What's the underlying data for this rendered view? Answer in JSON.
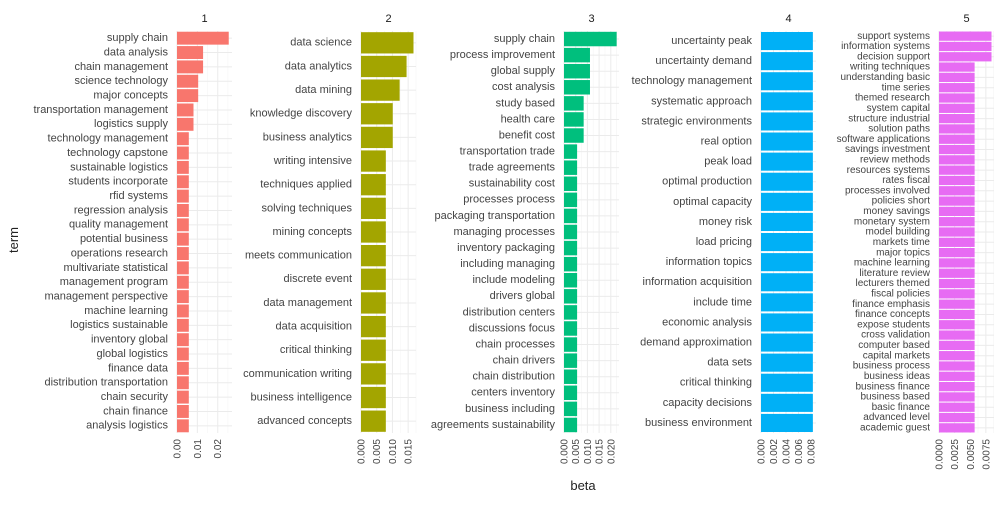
{
  "chart_data": {
    "type": "bar",
    "orientation": "horizontal",
    "facets": "one panel per topic, free term axis",
    "xlabel": "beta",
    "ylabel": "term",
    "grid": true,
    "legend": "none",
    "panels": [
      {
        "label": "1",
        "color": "#F8766D",
        "xlim": [
          0,
          0.027
        ],
        "xticks": [
          0.0,
          0.01,
          0.02
        ],
        "tick_labels": [
          "0.00",
          "0.01",
          "0.02"
        ],
        "terms": [
          "supply chain",
          "data analysis",
          "chain management",
          "science technology",
          "major concepts",
          "transportation management",
          "logistics supply",
          "technology management",
          "technology capstone",
          "sustainable logistics",
          "students incorporate",
          "rfid systems",
          "regression analysis",
          "quality management",
          "potential business",
          "operations research",
          "multivariate statistical",
          "management program",
          "management perspective",
          "machine learning",
          "logistics sustainable",
          "inventory global",
          "global logistics",
          "finance data",
          "distribution transportation",
          "chain security",
          "chain finance",
          "analysis logistics"
        ],
        "values": [
          0.0254,
          0.0128,
          0.0128,
          0.0104,
          0.0104,
          0.0081,
          0.0081,
          0.0058,
          0.0058,
          0.0058,
          0.0058,
          0.0058,
          0.0058,
          0.0058,
          0.0058,
          0.0058,
          0.0058,
          0.0058,
          0.0058,
          0.0058,
          0.0058,
          0.0058,
          0.0058,
          0.0058,
          0.0058,
          0.0058,
          0.0058,
          0.0058
        ]
      },
      {
        "label": "2",
        "color": "#A3A500",
        "xlim": [
          0,
          0.0175
        ],
        "xticks": [
          0.0,
          0.005,
          0.01,
          0.015
        ],
        "tick_labels": [
          "0.000",
          "0.005",
          "0.010",
          "0.015"
        ],
        "terms": [
          "data science",
          "data analytics",
          "data mining",
          "knowledge discovery",
          "business analytics",
          "writing intensive",
          "techniques applied",
          "solving techniques",
          "mining concepts",
          "meets communication",
          "discrete event",
          "data management",
          "data acquisition",
          "critical thinking",
          "communication writing",
          "business intelligence",
          "advanced concepts"
        ],
        "values": [
          0.0167,
          0.0145,
          0.0123,
          0.0101,
          0.0101,
          0.0079,
          0.0079,
          0.0079,
          0.0079,
          0.0079,
          0.0079,
          0.0079,
          0.0079,
          0.0079,
          0.0079,
          0.0079,
          0.0079
        ]
      },
      {
        "label": "3",
        "color": "#00BF7D",
        "xlim": [
          0,
          0.0235
        ],
        "xticks": [
          0.0,
          0.005,
          0.01,
          0.015,
          0.02
        ],
        "tick_labels": [
          "0.000",
          "0.005",
          "0.010",
          "0.015",
          "0.020"
        ],
        "terms": [
          "supply chain",
          "process improvement",
          "global supply",
          "cost analysis",
          "study based",
          "health care",
          "benefit cost",
          "transportation trade",
          "trade agreements",
          "sustainability cost",
          "processes process",
          "packaging transportation",
          "managing processes",
          "inventory packaging",
          "including managing",
          "include modeling",
          "drivers global",
          "distribution centers",
          "discussions focus",
          "chain processes",
          "chain drivers",
          "chain distribution",
          "centers inventory",
          "business including",
          "agreements sustainability"
        ],
        "values": [
          0.0225,
          0.0111,
          0.0111,
          0.0111,
          0.0084,
          0.0084,
          0.0084,
          0.0056,
          0.0056,
          0.0056,
          0.0056,
          0.0056,
          0.0056,
          0.0056,
          0.0056,
          0.0056,
          0.0056,
          0.0056,
          0.0056,
          0.0056,
          0.0056,
          0.0056,
          0.0056,
          0.0056,
          0.0056
        ]
      },
      {
        "label": "4",
        "color": "#00B0F6",
        "xlim": [
          0,
          0.0088
        ],
        "xticks": [
          0.0,
          0.002,
          0.004,
          0.006,
          0.008
        ],
        "tick_labels": [
          "0.000",
          "0.002",
          "0.004",
          "0.006",
          "0.008"
        ],
        "terms": [
          "uncertainty peak",
          "uncertainty demand",
          "technology management",
          "systematic approach",
          "strategic environments",
          "real option",
          "peak load",
          "optimal production",
          "optimal capacity",
          "money risk",
          "load pricing",
          "information topics",
          "information acquisition",
          "include time",
          "economic analysis",
          "demand approximation",
          "data sets",
          "critical thinking",
          "capacity decisions",
          "business environment"
        ],
        "values": [
          0.0083,
          0.0083,
          0.0083,
          0.0083,
          0.0083,
          0.0083,
          0.0083,
          0.0083,
          0.0083,
          0.0083,
          0.0083,
          0.0083,
          0.0083,
          0.0083,
          0.0083,
          0.0083,
          0.0083,
          0.0083,
          0.0083,
          0.0083
        ]
      },
      {
        "label": "5",
        "color": "#E76BF3",
        "xlim": [
          0,
          0.0088
        ],
        "xticks": [
          0.0,
          0.0025,
          0.005,
          0.0075
        ],
        "tick_labels": [
          "0.0000",
          "0.0025",
          "0.0050",
          "0.0075"
        ],
        "terms": [
          "support systems",
          "information systems",
          "decision support",
          "writing techniques",
          "understanding basic",
          "time series",
          "themed research",
          "system capital",
          "structure industrial",
          "solution paths",
          "software applications",
          "savings investment",
          "review methods",
          "resources systems",
          "rates fiscal",
          "processes involved",
          "policies short",
          "money savings",
          "monetary system",
          "model building",
          "markets time",
          "major topics",
          "machine learning",
          "literature review",
          "lecturers themed",
          "fiscal policies",
          "finance emphasis",
          "finance concepts",
          "expose students",
          "cross validation",
          "computer based",
          "capital markets",
          "business process",
          "business ideas",
          "business finance",
          "business based",
          "basic finance",
          "advanced level",
          "academic guest"
        ],
        "values": [
          0.0084,
          0.0084,
          0.0084,
          0.0057,
          0.0057,
          0.0057,
          0.0057,
          0.0057,
          0.0057,
          0.0057,
          0.0057,
          0.0057,
          0.0057,
          0.0057,
          0.0057,
          0.0057,
          0.0057,
          0.0057,
          0.0057,
          0.0057,
          0.0057,
          0.0057,
          0.0057,
          0.0057,
          0.0057,
          0.0057,
          0.0057,
          0.0057,
          0.0057,
          0.0057,
          0.0057,
          0.0057,
          0.0057,
          0.0057,
          0.0057,
          0.0057,
          0.0057,
          0.0057,
          0.0057
        ]
      }
    ]
  }
}
